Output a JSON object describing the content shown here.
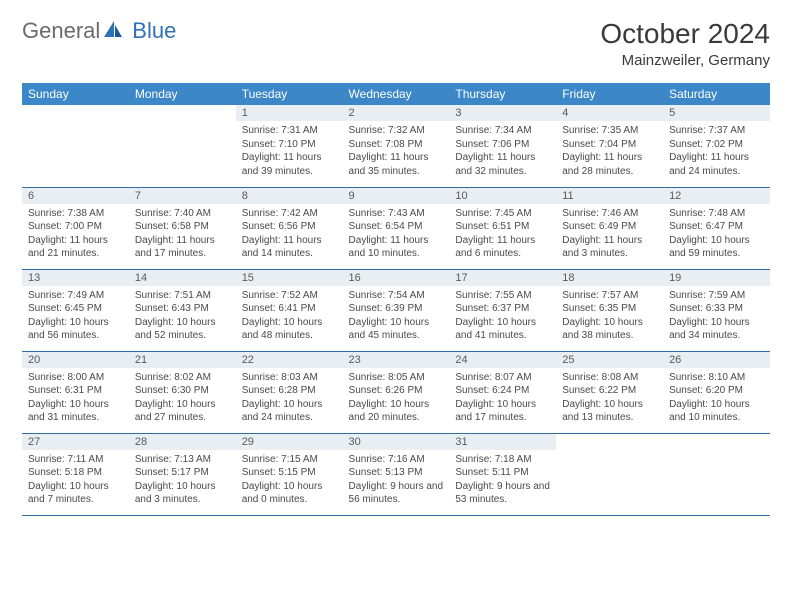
{
  "logo": {
    "text1": "General",
    "text2": "Blue"
  },
  "title": "October 2024",
  "location": "Mainzweiler, Germany",
  "colors": {
    "header_bg": "#3b87c8",
    "header_text": "#ffffff",
    "daynum_bg": "#e9eef2",
    "daynum_text": "#5a5a5a",
    "body_text": "#4a4a4a",
    "row_border": "#2f6da8",
    "logo_gray": "#6b6b6b",
    "logo_blue": "#2f71b8",
    "title_color": "#3a3a3a",
    "page_bg": "#ffffff"
  },
  "typography": {
    "month_title_fontsize": 28,
    "location_fontsize": 15,
    "header_fontsize": 12,
    "daynum_fontsize": 11,
    "content_fontsize": 10,
    "logo_fontsize": 22,
    "font_family": "Arial"
  },
  "calendar": {
    "columns": [
      "Sunday",
      "Monday",
      "Tuesday",
      "Wednesday",
      "Thursday",
      "Friday",
      "Saturday"
    ],
    "weeks": [
      [
        null,
        null,
        {
          "n": "1",
          "sr": "Sunrise: 7:31 AM",
          "ss": "Sunset: 7:10 PM",
          "dl": "Daylight: 11 hours and 39 minutes."
        },
        {
          "n": "2",
          "sr": "Sunrise: 7:32 AM",
          "ss": "Sunset: 7:08 PM",
          "dl": "Daylight: 11 hours and 35 minutes."
        },
        {
          "n": "3",
          "sr": "Sunrise: 7:34 AM",
          "ss": "Sunset: 7:06 PM",
          "dl": "Daylight: 11 hours and 32 minutes."
        },
        {
          "n": "4",
          "sr": "Sunrise: 7:35 AM",
          "ss": "Sunset: 7:04 PM",
          "dl": "Daylight: 11 hours and 28 minutes."
        },
        {
          "n": "5",
          "sr": "Sunrise: 7:37 AM",
          "ss": "Sunset: 7:02 PM",
          "dl": "Daylight: 11 hours and 24 minutes."
        }
      ],
      [
        {
          "n": "6",
          "sr": "Sunrise: 7:38 AM",
          "ss": "Sunset: 7:00 PM",
          "dl": "Daylight: 11 hours and 21 minutes."
        },
        {
          "n": "7",
          "sr": "Sunrise: 7:40 AM",
          "ss": "Sunset: 6:58 PM",
          "dl": "Daylight: 11 hours and 17 minutes."
        },
        {
          "n": "8",
          "sr": "Sunrise: 7:42 AM",
          "ss": "Sunset: 6:56 PM",
          "dl": "Daylight: 11 hours and 14 minutes."
        },
        {
          "n": "9",
          "sr": "Sunrise: 7:43 AM",
          "ss": "Sunset: 6:54 PM",
          "dl": "Daylight: 11 hours and 10 minutes."
        },
        {
          "n": "10",
          "sr": "Sunrise: 7:45 AM",
          "ss": "Sunset: 6:51 PM",
          "dl": "Daylight: 11 hours and 6 minutes."
        },
        {
          "n": "11",
          "sr": "Sunrise: 7:46 AM",
          "ss": "Sunset: 6:49 PM",
          "dl": "Daylight: 11 hours and 3 minutes."
        },
        {
          "n": "12",
          "sr": "Sunrise: 7:48 AM",
          "ss": "Sunset: 6:47 PM",
          "dl": "Daylight: 10 hours and 59 minutes."
        }
      ],
      [
        {
          "n": "13",
          "sr": "Sunrise: 7:49 AM",
          "ss": "Sunset: 6:45 PM",
          "dl": "Daylight: 10 hours and 56 minutes."
        },
        {
          "n": "14",
          "sr": "Sunrise: 7:51 AM",
          "ss": "Sunset: 6:43 PM",
          "dl": "Daylight: 10 hours and 52 minutes."
        },
        {
          "n": "15",
          "sr": "Sunrise: 7:52 AM",
          "ss": "Sunset: 6:41 PM",
          "dl": "Daylight: 10 hours and 48 minutes."
        },
        {
          "n": "16",
          "sr": "Sunrise: 7:54 AM",
          "ss": "Sunset: 6:39 PM",
          "dl": "Daylight: 10 hours and 45 minutes."
        },
        {
          "n": "17",
          "sr": "Sunrise: 7:55 AM",
          "ss": "Sunset: 6:37 PM",
          "dl": "Daylight: 10 hours and 41 minutes."
        },
        {
          "n": "18",
          "sr": "Sunrise: 7:57 AM",
          "ss": "Sunset: 6:35 PM",
          "dl": "Daylight: 10 hours and 38 minutes."
        },
        {
          "n": "19",
          "sr": "Sunrise: 7:59 AM",
          "ss": "Sunset: 6:33 PM",
          "dl": "Daylight: 10 hours and 34 minutes."
        }
      ],
      [
        {
          "n": "20",
          "sr": "Sunrise: 8:00 AM",
          "ss": "Sunset: 6:31 PM",
          "dl": "Daylight: 10 hours and 31 minutes."
        },
        {
          "n": "21",
          "sr": "Sunrise: 8:02 AM",
          "ss": "Sunset: 6:30 PM",
          "dl": "Daylight: 10 hours and 27 minutes."
        },
        {
          "n": "22",
          "sr": "Sunrise: 8:03 AM",
          "ss": "Sunset: 6:28 PM",
          "dl": "Daylight: 10 hours and 24 minutes."
        },
        {
          "n": "23",
          "sr": "Sunrise: 8:05 AM",
          "ss": "Sunset: 6:26 PM",
          "dl": "Daylight: 10 hours and 20 minutes."
        },
        {
          "n": "24",
          "sr": "Sunrise: 8:07 AM",
          "ss": "Sunset: 6:24 PM",
          "dl": "Daylight: 10 hours and 17 minutes."
        },
        {
          "n": "25",
          "sr": "Sunrise: 8:08 AM",
          "ss": "Sunset: 6:22 PM",
          "dl": "Daylight: 10 hours and 13 minutes."
        },
        {
          "n": "26",
          "sr": "Sunrise: 8:10 AM",
          "ss": "Sunset: 6:20 PM",
          "dl": "Daylight: 10 hours and 10 minutes."
        }
      ],
      [
        {
          "n": "27",
          "sr": "Sunrise: 7:11 AM",
          "ss": "Sunset: 5:18 PM",
          "dl": "Daylight: 10 hours and 7 minutes."
        },
        {
          "n": "28",
          "sr": "Sunrise: 7:13 AM",
          "ss": "Sunset: 5:17 PM",
          "dl": "Daylight: 10 hours and 3 minutes."
        },
        {
          "n": "29",
          "sr": "Sunrise: 7:15 AM",
          "ss": "Sunset: 5:15 PM",
          "dl": "Daylight: 10 hours and 0 minutes."
        },
        {
          "n": "30",
          "sr": "Sunrise: 7:16 AM",
          "ss": "Sunset: 5:13 PM",
          "dl": "Daylight: 9 hours and 56 minutes."
        },
        {
          "n": "31",
          "sr": "Sunrise: 7:18 AM",
          "ss": "Sunset: 5:11 PM",
          "dl": "Daylight: 9 hours and 53 minutes."
        },
        null,
        null
      ]
    ]
  }
}
